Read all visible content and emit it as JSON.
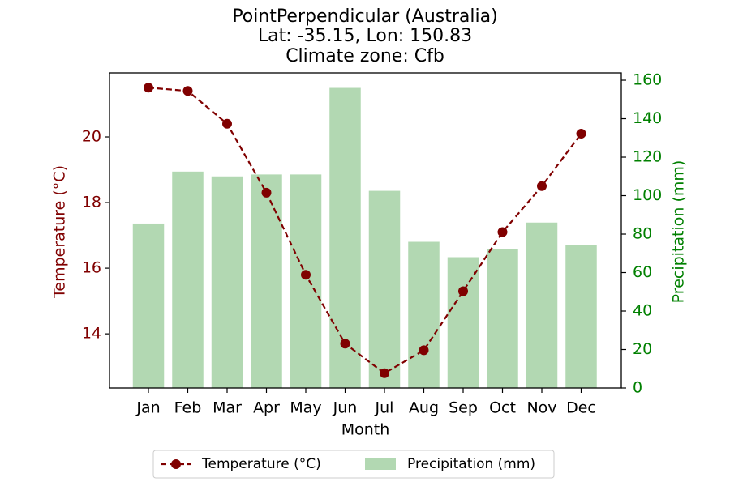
{
  "title_lines": [
    "PointPerpendicular (Australia)",
    "Lat: -35.15, Lon: 150.83",
    "Climate zone: Cfb"
  ],
  "colors": {
    "temperature": "#800000",
    "precipitation_bar": "#b2d8b2",
    "precipitation_axis": "#008000",
    "axis": "#000000"
  },
  "chart_data": {
    "type": "bar+line",
    "title": "PointPerpendicular (Australia)\nLat: -35.15, Lon: 150.83\nClimate zone: Cfb",
    "xlabel": "Month",
    "categories": [
      "Jan",
      "Feb",
      "Mar",
      "Apr",
      "May",
      "Jun",
      "Jul",
      "Aug",
      "Sep",
      "Oct",
      "Nov",
      "Dec"
    ],
    "series": [
      {
        "name": "Temperature (°C)",
        "type": "line",
        "axis": "left",
        "line_style": "dashed",
        "marker": "circle",
        "values": [
          21.5,
          21.4,
          20.4,
          18.3,
          15.8,
          13.7,
          12.8,
          13.5,
          15.3,
          17.1,
          18.5,
          20.1
        ]
      },
      {
        "name": "Precipitation (mm)",
        "type": "bar",
        "axis": "right",
        "values": [
          85.5,
          112.5,
          110.0,
          111.0,
          111.0,
          156.0,
          102.5,
          76.0,
          68.0,
          72.0,
          86.0,
          74.5
        ]
      }
    ],
    "y_left": {
      "label": "Temperature (°C)",
      "ticks": [
        14,
        16,
        18,
        20
      ],
      "range": [
        12.35,
        21.95
      ]
    },
    "y_right": {
      "label": "Precipitation (mm)",
      "ticks": [
        0,
        20,
        40,
        60,
        80,
        100,
        120,
        140,
        160
      ],
      "range": [
        0,
        163.8
      ]
    },
    "legend": {
      "position": "bottom-center",
      "entries": [
        "Temperature (°C)",
        "Precipitation (mm)"
      ]
    },
    "grid": false
  }
}
